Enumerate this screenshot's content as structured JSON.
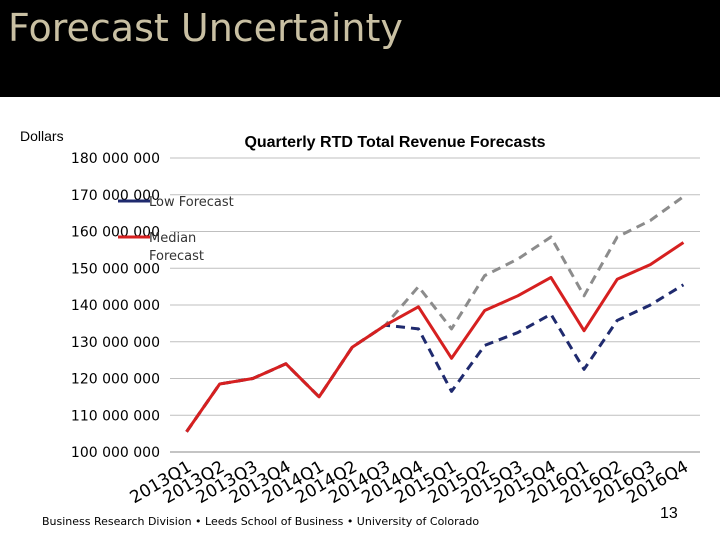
{
  "slide": {
    "title": "Forecast Uncertainty",
    "units_label": "Dollars",
    "footer": "Business Research Division • Leeds School of Business • University of Colorado",
    "page_number": "13"
  },
  "colors": {
    "title_bar": "#000000",
    "title_text": "#c9c0a3",
    "low": "#1f2a6e",
    "median": "#d62020",
    "high": "#8c8c8c"
  },
  "chart_data": {
    "type": "line",
    "title": "Quarterly RTD Total Revenue Forecasts",
    "ylim": [
      100000000,
      180000000
    ],
    "yticks": [
      {
        "value": 100000000,
        "label": "100 000 000"
      },
      {
        "value": 110000000,
        "label": "110 000 000"
      },
      {
        "value": 120000000,
        "label": "120 000 000"
      },
      {
        "value": 130000000,
        "label": "130 000 000"
      },
      {
        "value": 140000000,
        "label": "140 000 000"
      },
      {
        "value": 150000000,
        "label": "150 000 000"
      },
      {
        "value": 160000000,
        "label": "160 000 000"
      },
      {
        "value": 170000000,
        "label": "170 000 000"
      },
      {
        "value": 180000000,
        "label": "180 000 000"
      }
    ],
    "categories": [
      "2013Q1",
      "2013Q2",
      "2013Q3",
      "2013Q4",
      "2014Q1",
      "2014Q2",
      "2014Q3",
      "2014Q4",
      "2015Q1",
      "2015Q2",
      "2015Q3",
      "2015Q4",
      "2016Q1",
      "2016Q2",
      "2016Q3",
      "2016Q4"
    ],
    "grid": "horizontal",
    "legend_position": "top-left",
    "series": [
      {
        "name": "Low Forecast",
        "key": "low",
        "dash": "dashed",
        "values": [
          105500000,
          118500000,
          120000000,
          124000000,
          115000000,
          128500000,
          134500000,
          133500000,
          116500000,
          129000000,
          132500000,
          137500000,
          122500000,
          135800000,
          140000000,
          145500000
        ]
      },
      {
        "name": "Median Forecast",
        "key": "median",
        "dash": "solid",
        "values": [
          105500000,
          118500000,
          120000000,
          124000000,
          115000000,
          128500000,
          134500000,
          139500000,
          125500000,
          138500000,
          142500000,
          147500000,
          133000000,
          147000000,
          151000000,
          157000000
        ]
      },
      {
        "key": "high",
        "dash": "dashed",
        "values": [
          105500000,
          118500000,
          120000000,
          124000000,
          115000000,
          128500000,
          134500000,
          145000000,
          133500000,
          148000000,
          152500000,
          158500000,
          142500000,
          158500000,
          163000000,
          169500000
        ]
      }
    ]
  }
}
